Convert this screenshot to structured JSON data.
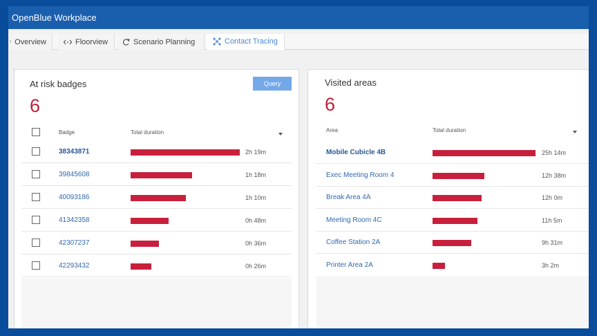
{
  "app": {
    "title": "OpenBlue Workplace"
  },
  "tabs": [
    {
      "label": "Overview",
      "icon": "pin-icon"
    },
    {
      "label": "Floorview",
      "icon": "code-icon"
    },
    {
      "label": "Scenario Planning",
      "icon": "refresh-icon"
    },
    {
      "label": "Contact Tracing",
      "icon": "network-icon"
    }
  ],
  "active_tab": "Contact Tracing",
  "badges_panel": {
    "title": "At risk badges",
    "count": "6",
    "query_label": "Query",
    "col_badge": "Badge",
    "col_duration": "Total duration",
    "rows": [
      {
        "badge": "38343871",
        "duration": "2h 19m",
        "minutes": 139
      },
      {
        "badge": "39845608",
        "duration": "1h 18m",
        "minutes": 78
      },
      {
        "badge": "40093186",
        "duration": "1h 10m",
        "minutes": 70
      },
      {
        "badge": "41342358",
        "duration": "0h 48m",
        "minutes": 48
      },
      {
        "badge": "42307237",
        "duration": "0h 36m",
        "minutes": 36
      },
      {
        "badge": "42293432",
        "duration": "0h 26m",
        "minutes": 26
      }
    ]
  },
  "areas_panel": {
    "title": "Visited areas",
    "count": "6",
    "col_area": "Area",
    "col_duration": "Total duration",
    "rows": [
      {
        "area": "Mobile Cubicle 4B",
        "duration": "25h 14m",
        "minutes": 1514
      },
      {
        "area": "Exec Meeting Room 4",
        "duration": "12h 38m",
        "minutes": 758
      },
      {
        "area": "Break Area 4A",
        "duration": "12h 0m",
        "minutes": 720
      },
      {
        "area": "Meeting Room 4C",
        "duration": "11h 5m",
        "minutes": 665
      },
      {
        "area": "Coffee Station 2A",
        "duration": "9h 31m",
        "minutes": 571
      },
      {
        "area": "Printer Area 2A",
        "duration": "3h 2m",
        "minutes": 182
      }
    ]
  },
  "colors": {
    "accent": "#1a5fae",
    "bar": "#c8203c",
    "count": "#c0203a",
    "query": "#74a8e8",
    "link": "#3168b0"
  }
}
